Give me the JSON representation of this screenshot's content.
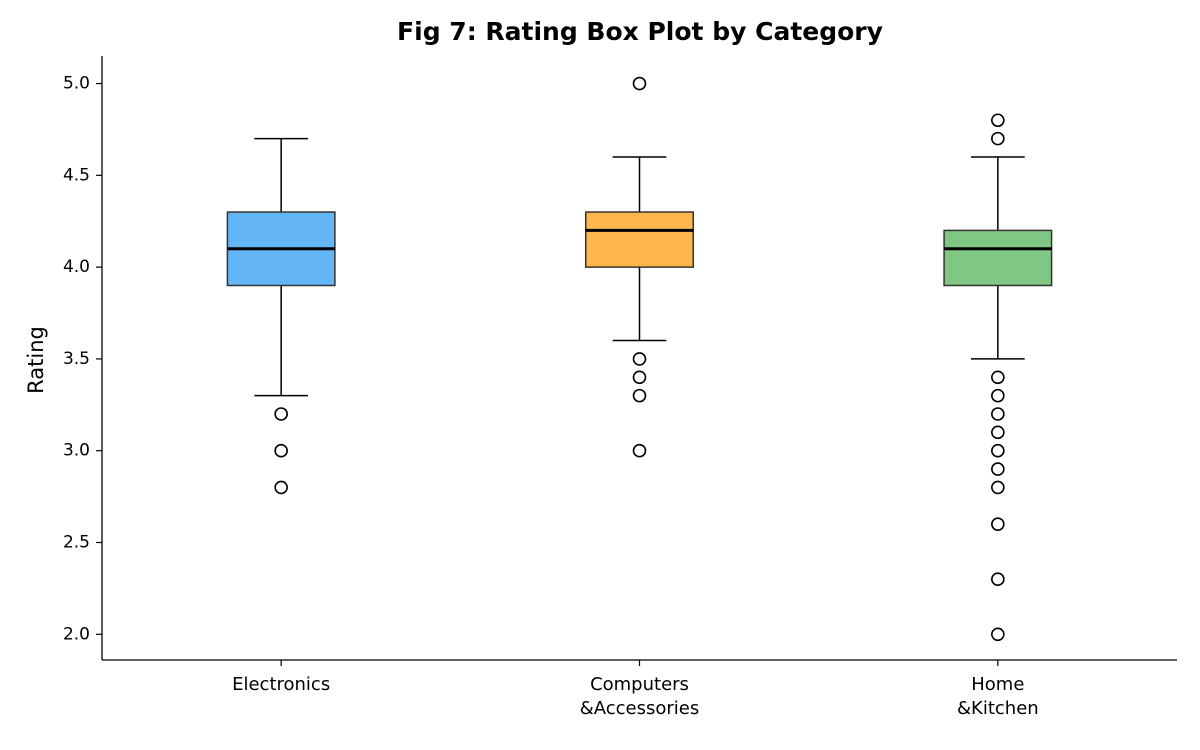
{
  "chart_data": {
    "type": "box",
    "title": "Fig 7: Rating Box Plot by Category",
    "y_label": "Rating",
    "categories": [
      "Electronics",
      "Computers\n&Accessories",
      "Home\n&Kitchen"
    ],
    "boxes": [
      {
        "color": "#64b5f6",
        "whislo": 3.3,
        "q1": 3.9,
        "med": 4.1,
        "q3": 4.3,
        "whishi": 4.7,
        "fliers": [
          3.2,
          3.0,
          2.8
        ]
      },
      {
        "color": "#ffb74d",
        "whislo": 3.6,
        "q1": 4.0,
        "med": 4.2,
        "q3": 4.3,
        "whishi": 4.6,
        "fliers": [
          5.0,
          3.5,
          3.4,
          3.3,
          3.0
        ]
      },
      {
        "color": "#81c784",
        "whislo": 3.5,
        "q1": 3.9,
        "med": 4.1,
        "q3": 4.2,
        "whishi": 4.6,
        "fliers": [
          4.8,
          4.7,
          3.4,
          3.3,
          3.2,
          3.1,
          3.0,
          2.9,
          2.8,
          2.6,
          2.3,
          2.0
        ]
      }
    ],
    "ylim": [
      1.86,
      5.15
    ],
    "yticks": [
      {
        "value": 2,
        "label": "2.0"
      },
      2.5,
      {
        "value": 3,
        "label": "3.0"
      },
      3.5,
      {
        "value": 4,
        "label": "4.0"
      },
      4.5,
      {
        "value": 5,
        "label": "5.0"
      }
    ],
    "grid": false
  }
}
